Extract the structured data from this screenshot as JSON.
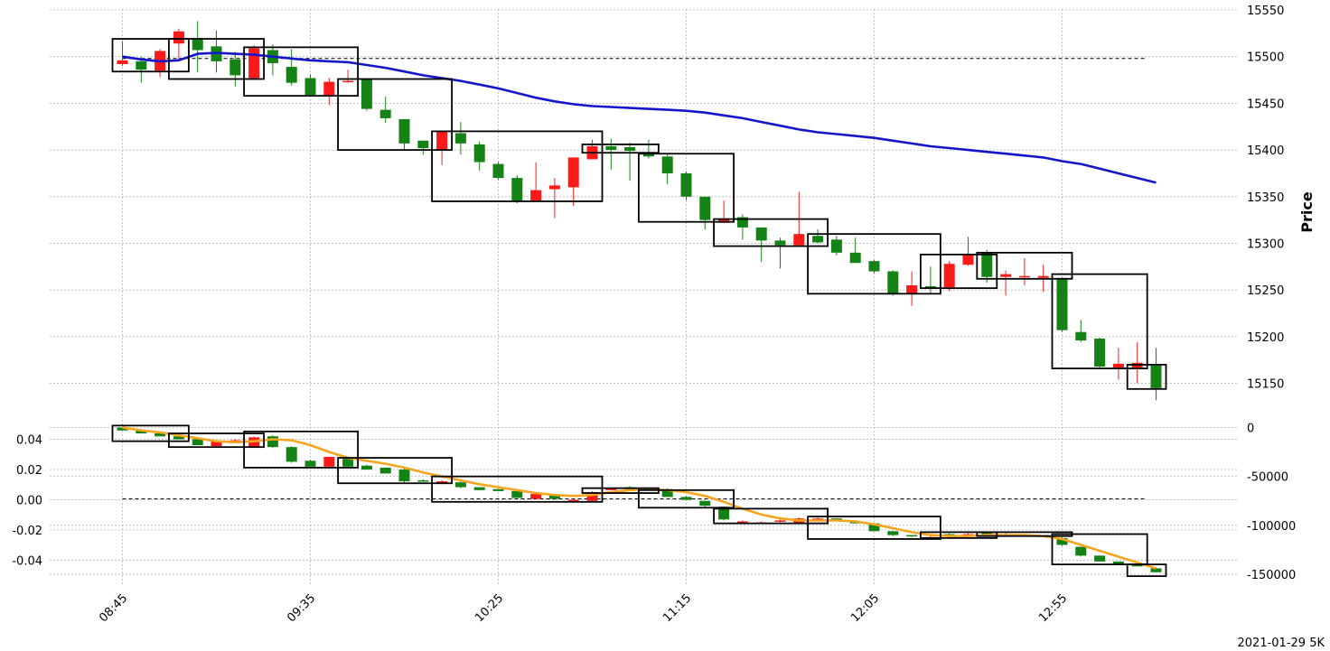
{
  "footer": "2021-01-29 5K",
  "colors": {
    "up": "#ff1a1a",
    "down": "#148214",
    "ma_price": "#1515cc",
    "ma_indicator": "#f5a51e",
    "box": "#000000",
    "grid": "#b4b4b4"
  },
  "chart_data": [
    {
      "type": "candlestick",
      "panel": "price",
      "ylabel": "Price",
      "ylim": [
        15100,
        15550
      ],
      "yticks": [
        15150,
        15200,
        15250,
        15300,
        15350,
        15400,
        15450,
        15500,
        15550
      ],
      "x_tick_labels": [
        "08:45",
        "09:35",
        "10:25",
        "11:15",
        "12:05",
        "12:55"
      ],
      "x_tick_indices": [
        0,
        10,
        20,
        30,
        40,
        50
      ],
      "reference_line": 15498,
      "candles": [
        [
          15492,
          15496,
          15517,
          15490
        ],
        [
          15495,
          15486,
          15500,
          15472
        ],
        [
          15485,
          15506,
          15508,
          15478
        ],
        [
          15514,
          15527,
          15530,
          15496
        ],
        [
          15520,
          15507,
          15538,
          15483
        ],
        [
          15511,
          15495,
          15528,
          15483
        ],
        [
          15497,
          15480,
          15505,
          15468
        ],
        [
          15477,
          15509,
          15512,
          15475
        ],
        [
          15507,
          15493,
          15513,
          15480
        ],
        [
          15489,
          15472,
          15508,
          15469
        ],
        [
          15477,
          15459,
          15481,
          15458
        ],
        [
          15459,
          15473,
          15477,
          15448
        ],
        [
          15473,
          15474,
          15486,
          15472
        ],
        [
          15476,
          15444,
          15476,
          15442
        ],
        [
          15443,
          15434,
          15457,
          15429
        ],
        [
          15433,
          15407,
          15433,
          15400
        ],
        [
          15410,
          15402,
          15410,
          15395
        ],
        [
          15400,
          15420,
          15420,
          15384
        ],
        [
          15418,
          15407,
          15430,
          15395
        ],
        [
          15406,
          15387,
          15409,
          15378
        ],
        [
          15385,
          15370,
          15387,
          15368
        ],
        [
          15370,
          15345,
          15373,
          15343
        ],
        [
          15345,
          15357,
          15387,
          15345
        ],
        [
          15358,
          15362,
          15370,
          15327
        ],
        [
          15360,
          15392,
          15392,
          15340
        ],
        [
          15390,
          15404,
          15411,
          15390
        ],
        [
          15404,
          15400,
          15412,
          15379
        ],
        [
          15403,
          15399,
          15408,
          15367
        ],
        [
          15397,
          15393,
          15411,
          15391
        ],
        [
          15393,
          15375,
          15396,
          15363
        ],
        [
          15375,
          15350,
          15377,
          15346
        ],
        [
          15350,
          15325,
          15350,
          15315
        ],
        [
          15322,
          15326,
          15346,
          15322
        ],
        [
          15328,
          15317,
          15331,
          15304
        ],
        [
          15317,
          15303,
          15317,
          15280
        ],
        [
          15303,
          15298,
          15306,
          15273
        ],
        [
          15298,
          15310,
          15355,
          15298
        ],
        [
          15308,
          15301,
          15315,
          15300
        ],
        [
          15304,
          15290,
          15308,
          15287
        ],
        [
          15290,
          15279,
          15306,
          15279
        ],
        [
          15281,
          15270,
          15282,
          15268
        ],
        [
          15270,
          15246,
          15271,
          15244
        ],
        [
          15246,
          15255,
          15270,
          15233
        ],
        [
          15254,
          15253,
          15275,
          15246
        ],
        [
          15253,
          15278,
          15281,
          15249
        ],
        [
          15277,
          15288,
          15307,
          15276
        ],
        [
          15290,
          15264,
          15293,
          15258
        ],
        [
          15264,
          15267,
          15271,
          15244
        ],
        [
          15264,
          15265,
          15284,
          15255
        ],
        [
          15263,
          15265,
          15277,
          15248
        ],
        [
          15263,
          15207,
          15263,
          15205
        ],
        [
          15205,
          15196,
          15218,
          15194
        ],
        [
          15198,
          15168,
          15199,
          15166
        ],
        [
          15167,
          15171,
          15188,
          15154
        ],
        [
          15167,
          15172,
          15194,
          15150
        ],
        [
          15169,
          15145,
          15188,
          15132
        ]
      ],
      "moving_average": [
        15500,
        15497,
        15495,
        15496,
        15503,
        15504,
        15503,
        15502,
        15500,
        15498,
        15496,
        15495,
        15494,
        15491,
        15488,
        15484,
        15480,
        15477,
        15474,
        15470,
        15466,
        15461,
        15456,
        15452,
        15449,
        15447,
        15446,
        15445,
        15444,
        15443,
        15442,
        15440,
        15437,
        15434,
        15430,
        15426,
        15422,
        15419,
        15417,
        15415,
        15413,
        15410,
        15407,
        15404,
        15402,
        15400,
        15398,
        15396,
        15394,
        15392,
        15388,
        15385,
        15380,
        15375,
        15370,
        15365
      ],
      "boxes": [
        {
          "start": 0,
          "end": 3,
          "top": 15519,
          "bottom": 15484
        },
        {
          "start": 3,
          "end": 7,
          "top": 15519,
          "bottom": 15476
        },
        {
          "start": 7,
          "end": 12,
          "top": 15510,
          "bottom": 15458
        },
        {
          "start": 12,
          "end": 17,
          "top": 15476,
          "bottom": 15400
        },
        {
          "start": 17,
          "end": 25,
          "top": 15420,
          "bottom": 15345
        },
        {
          "start": 25,
          "end": 28,
          "top": 15406,
          "bottom": 15397
        },
        {
          "start": 28,
          "end": 32,
          "top": 15396,
          "bottom": 15323
        },
        {
          "start": 32,
          "end": 37,
          "top": 15326,
          "bottom": 15297
        },
        {
          "start": 37,
          "end": 43,
          "top": 15310,
          "bottom": 15246
        },
        {
          "start": 43,
          "end": 46,
          "top": 15288,
          "bottom": 15252
        },
        {
          "start": 46,
          "end": 50,
          "top": 15290,
          "bottom": 15262
        },
        {
          "start": 50,
          "end": 54,
          "top": 15267,
          "bottom": 15166
        },
        {
          "start": 54,
          "end": 55,
          "top": 15170,
          "bottom": 15144
        }
      ]
    },
    {
      "type": "candlestick",
      "panel": "indicator",
      "ylim_left": [
        -0.0525,
        0.05
      ],
      "yticks_left": [
        -0.04,
        -0.02,
        0.0,
        0.02,
        0.04
      ],
      "yticks_right": [
        0,
        -50000,
        -100000,
        -150000
      ],
      "reference_line_right": -73000,
      "candles": [
        [
          0,
          -3000,
          0,
          -3000
        ],
        [
          -3000,
          -6000,
          -2000,
          -6000
        ],
        [
          -6000,
          -9000,
          -6000,
          -9000
        ],
        [
          -9000,
          -12000,
          -8000,
          -12000
        ],
        [
          -12000,
          -18000,
          -12000,
          -18000
        ],
        [
          -19000,
          -14000,
          -13000,
          -20000
        ],
        [
          -16000,
          -13000,
          -12000,
          -16000
        ],
        [
          -20000,
          -10000,
          -9000,
          -20000
        ],
        [
          -9000,
          -20000,
          -8000,
          -21000
        ],
        [
          -20000,
          -35000,
          -19000,
          -36000
        ],
        [
          -34000,
          -40000,
          -33000,
          -40000
        ],
        [
          -40000,
          -30000,
          -30000,
          -42000
        ],
        [
          -32000,
          -40000,
          -31000,
          -40000
        ],
        [
          -39000,
          -43000,
          -38000,
          -43000
        ],
        [
          -41000,
          -47000,
          -41000,
          -47000
        ],
        [
          -43000,
          -55000,
          -42000,
          -56000
        ],
        [
          -54000,
          -55000,
          -53000,
          -55000
        ],
        [
          -57000,
          -55000,
          -54000,
          -58000
        ],
        [
          -56000,
          -61000,
          -55000,
          -62000
        ],
        [
          -61000,
          -64000,
          -61000,
          -64000
        ],
        [
          -63000,
          -65000,
          -63000,
          -65000
        ],
        [
          -65000,
          -72000,
          -65000,
          -72000
        ],
        [
          -73000,
          -68000,
          -67000,
          -73000
        ],
        [
          -69000,
          -73000,
          -69000,
          -74000
        ],
        [
          -76000,
          -74000,
          -73000,
          -77000
        ],
        [
          -75000,
          -66000,
          -65000,
          -76000
        ],
        [
          -64000,
          -62000,
          -62000,
          -64000
        ],
        [
          -61000,
          -63000,
          -60000,
          -63000
        ],
        [
          -63000,
          -63000,
          -62000,
          -64000
        ],
        [
          -63000,
          -71000,
          -62000,
          -71000
        ],
        [
          -71000,
          -74000,
          -70000,
          -74000
        ],
        [
          -75000,
          -80000,
          -75000,
          -81000
        ],
        [
          -81000,
          -94000,
          -81000,
          -95000
        ],
        [
          -97000,
          -96000,
          -95000,
          -98000
        ],
        [
          -97000,
          -97000,
          -96000,
          -98000
        ],
        [
          -96000,
          -95000,
          -93000,
          -97000
        ],
        [
          -98000,
          -93000,
          -92000,
          -99000
        ],
        [
          -93000,
          -93000,
          -92000,
          -94000
        ],
        [
          -93000,
          -96000,
          -93000,
          -96000
        ],
        [
          -96000,
          -98000,
          -95000,
          -98000
        ],
        [
          -98000,
          -106000,
          -98000,
          -106000
        ],
        [
          -106000,
          -110000,
          -106000,
          -111000
        ],
        [
          -110000,
          -111000,
          -110000,
          -112000
        ],
        [
          -112000,
          -112000,
          -111000,
          -113000
        ],
        [
          -109000,
          -110000,
          -108000,
          -111000
        ],
        [
          -111000,
          -109000,
          -108000,
          -111000
        ],
        [
          -108000,
          -110000,
          -107000,
          -110000
        ],
        [
          -109000,
          -110000,
          -108000,
          -110000
        ],
        [
          -110000,
          -110000,
          -109000,
          -111000
        ],
        [
          -110000,
          -111000,
          -110000,
          -111000
        ],
        [
          -113000,
          -120000,
          -112000,
          -121000
        ],
        [
          -122000,
          -131000,
          -122000,
          -132000
        ],
        [
          -131000,
          -137000,
          -131000,
          -137000
        ],
        [
          -137000,
          -140000,
          -137000,
          -140000
        ],
        [
          -140000,
          -142000,
          -139000,
          -142000
        ],
        [
          -144000,
          -148000,
          -143000,
          -148000
        ]
      ],
      "moving_average": [
        0,
        -3000,
        -5000,
        -8000,
        -11000,
        -14000,
        -15000,
        -14000,
        -12000,
        -13000,
        -18000,
        -25000,
        -31000,
        -34000,
        -37000,
        -41000,
        -46000,
        -50000,
        -54000,
        -58000,
        -61000,
        -64000,
        -67000,
        -69000,
        -70000,
        -69000,
        -66000,
        -64000,
        -63000,
        -64000,
        -66000,
        -70000,
        -76000,
        -83000,
        -89000,
        -93000,
        -95000,
        -95000,
        -95000,
        -96000,
        -99000,
        -103000,
        -107000,
        -110000,
        -111000,
        -111000,
        -110000,
        -110000,
        -110000,
        -111000,
        -114000,
        -120000,
        -126000,
        -132000,
        -138000,
        -144000
      ],
      "boxes": [
        {
          "start": 0,
          "end": 3,
          "top": 2000,
          "bottom": -14000
        },
        {
          "start": 3,
          "end": 7,
          "top": -6000,
          "bottom": -20000
        },
        {
          "start": 7,
          "end": 12,
          "top": -4000,
          "bottom": -41000
        },
        {
          "start": 12,
          "end": 17,
          "top": -31000,
          "bottom": -57000
        },
        {
          "start": 17,
          "end": 25,
          "top": -50000,
          "bottom": -76000
        },
        {
          "start": 25,
          "end": 28,
          "top": -62000,
          "bottom": -67000
        },
        {
          "start": 28,
          "end": 32,
          "top": -64000,
          "bottom": -82000
        },
        {
          "start": 32,
          "end": 37,
          "top": -83000,
          "bottom": -98000
        },
        {
          "start": 37,
          "end": 43,
          "top": -91000,
          "bottom": -114000
        },
        {
          "start": 43,
          "end": 46,
          "top": -107000,
          "bottom": -113000
        },
        {
          "start": 46,
          "end": 50,
          "top": -107000,
          "bottom": -111000
        },
        {
          "start": 50,
          "end": 54,
          "top": -109000,
          "bottom": -140000
        },
        {
          "start": 54,
          "end": 55,
          "top": -140000,
          "bottom": -152000
        }
      ]
    }
  ]
}
